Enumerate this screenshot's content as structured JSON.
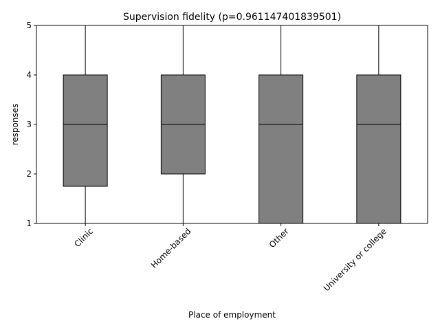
{
  "chart_data": {
    "type": "box",
    "title": "Supervision fidelity (p=0.961147401839501)",
    "xlabel": "Place of employment",
    "ylabel": "responses",
    "ylim": [
      1,
      5
    ],
    "yticks": [
      1,
      2,
      3,
      4,
      5
    ],
    "grid": false,
    "categories": [
      "Clinic",
      "Home-based",
      "Other",
      "University or college"
    ],
    "boxes": [
      {
        "whisker_low": 1,
        "q1": 1.75,
        "median": 3,
        "q3": 4,
        "whisker_high": 5
      },
      {
        "whisker_low": 1,
        "q1": 2,
        "median": 3,
        "q3": 4,
        "whisker_high": 5
      },
      {
        "whisker_low": 1,
        "q1": 1,
        "median": 3,
        "q3": 4,
        "whisker_high": 5
      },
      {
        "whisker_low": 1,
        "q1": 1,
        "median": 3,
        "q3": 4,
        "whisker_high": 5
      }
    ],
    "box_color": "#808080",
    "line_color": "#000000"
  }
}
